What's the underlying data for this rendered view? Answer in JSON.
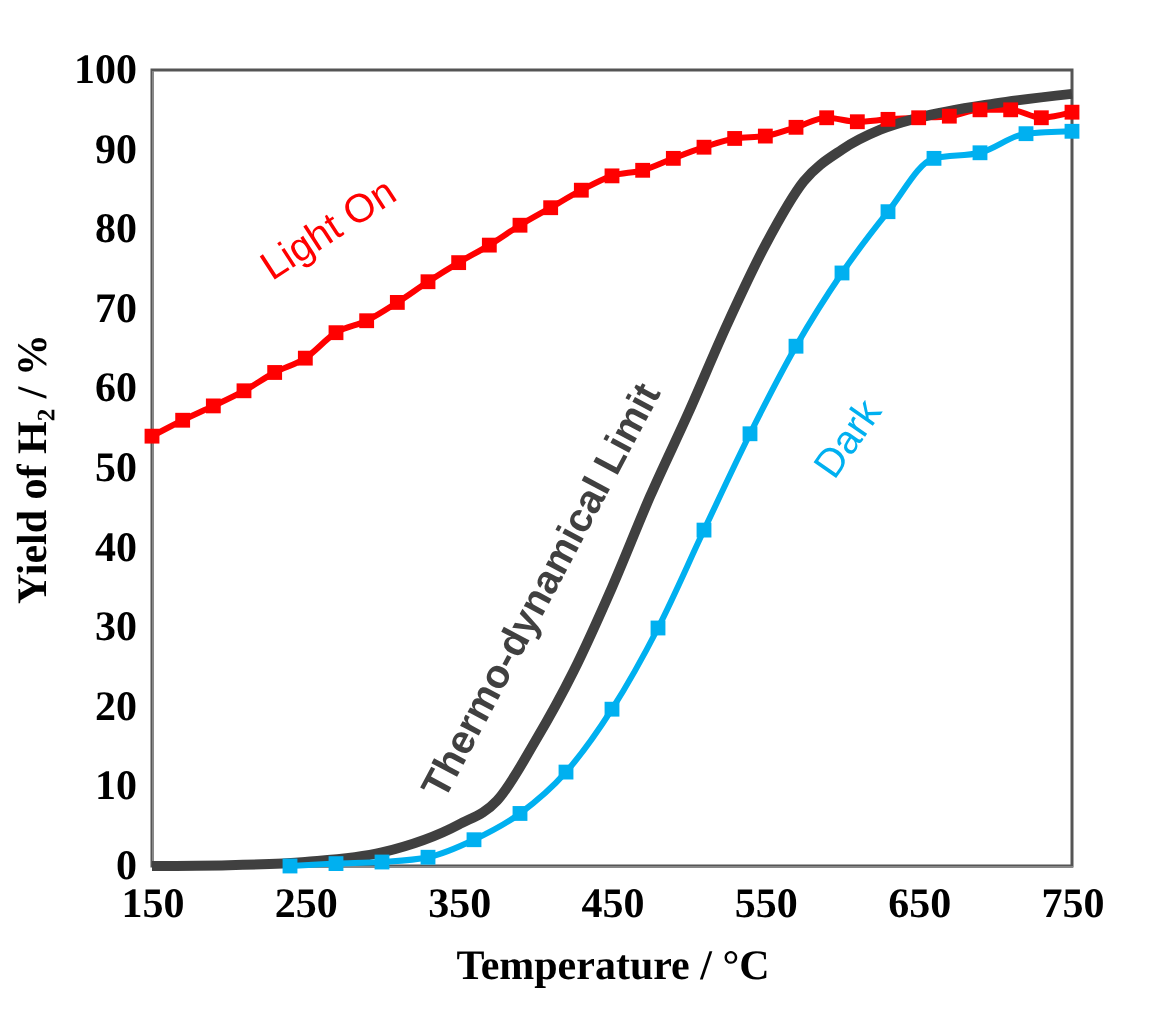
{
  "chart_data": {
    "type": "line",
    "xlabel": "Temperature / °C",
    "ylabel": "Yield of H₂ / %",
    "xlim": [
      150,
      750
    ],
    "xticks": [
      150,
      250,
      350,
      450,
      550,
      650,
      750
    ],
    "ylim": [
      0,
      100
    ],
    "yticks": [
      0,
      10,
      20,
      30,
      40,
      50,
      60,
      70,
      80,
      90,
      100
    ],
    "grid": false,
    "line_style": "solid",
    "series": [
      {
        "name": "Light On",
        "color": "#ff0000",
        "marker": "square",
        "x": [
          150,
          170,
          190,
          210,
          230,
          250,
          270,
          290,
          310,
          330,
          350,
          370,
          390,
          410,
          430,
          450,
          470,
          490,
          510,
          530,
          550,
          570,
          590,
          610,
          630,
          650,
          670,
          690,
          710,
          730,
          750
        ],
        "values": [
          54,
          56,
          57.8,
          59.7,
          62,
          63.8,
          67,
          68.5,
          70.8,
          73.4,
          75.8,
          78,
          80.5,
          82.7,
          84.9,
          86.7,
          87.4,
          88.9,
          90.3,
          91.4,
          91.7,
          92.8,
          94,
          93.5,
          93.8,
          94,
          94.2,
          95,
          95,
          94,
          94.7
        ]
      },
      {
        "name": "Thermo-dynamical Limit",
        "color": "#404040",
        "marker": "none",
        "x": [
          150,
          200,
          250,
          300,
          350,
          375,
          400,
          425,
          450,
          475,
          500,
          525,
          550,
          575,
          600,
          625,
          650,
          700,
          750
        ],
        "values": [
          0,
          0.1,
          0.5,
          1.7,
          5.2,
          8.2,
          15.7,
          24.5,
          35,
          46.5,
          57,
          68,
          78,
          86,
          90,
          92.5,
          94,
          95.8,
          97
        ]
      },
      {
        "name": "Dark",
        "color": "#00b0f0",
        "marker": "square",
        "x": [
          240,
          270,
          300,
          330,
          360,
          390,
          420,
          450,
          480,
          510,
          540,
          570,
          600,
          630,
          660,
          690,
          720,
          750
        ],
        "values": [
          0,
          0.3,
          0.5,
          1.1,
          3.3,
          6.6,
          11.8,
          19.7,
          29.9,
          42.2,
          54.3,
          65.3,
          74.5,
          82.2,
          88.9,
          89.6,
          92,
          92.3
        ]
      }
    ]
  }
}
